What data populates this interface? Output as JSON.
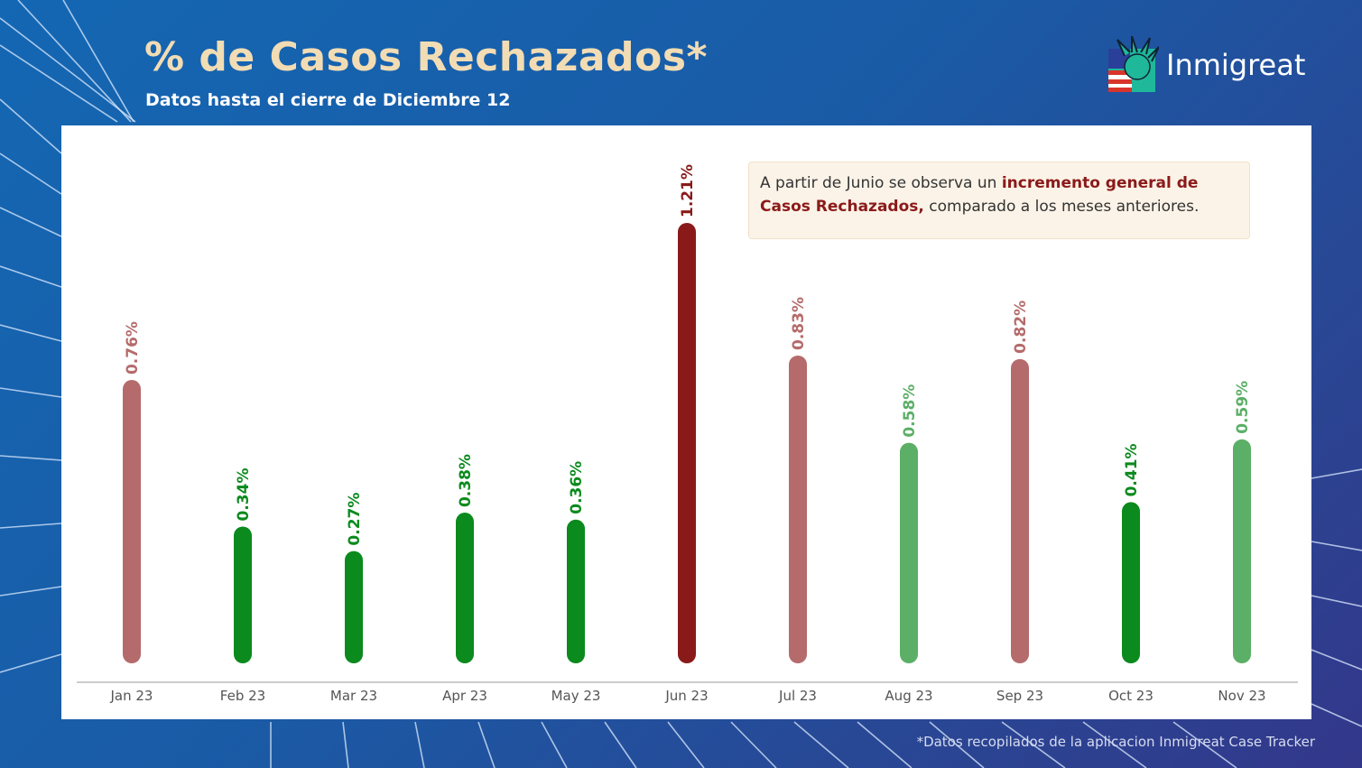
{
  "header": {
    "title": "% de Casos Rechazados*",
    "subtitle": "Datos hasta el cierre de Diciembre 12"
  },
  "logo": {
    "text": "Inmigreat"
  },
  "annotation": {
    "pre": "A partir de Junio se observa un ",
    "bold": "incremento general de Casos Rechazados,",
    "post": " comparado a los meses anteriores."
  },
  "footer": {
    "note": "*Datos recopilados de la aplicacion Inmigreat Case Tracker"
  },
  "colors": {
    "light_red": "#b56b6b",
    "dark_red": "#8a1a1a",
    "dark_green": "#0b8a1d",
    "light_green": "#5caf66"
  },
  "chart_data": {
    "type": "bar",
    "title": "% de Casos Rechazados*",
    "categories": [
      "Jan 23",
      "Feb 23",
      "Mar 23",
      "Apr 23",
      "May 23",
      "Jun 23",
      "Jul 23",
      "Aug 23",
      "Sep 23",
      "Oct 23",
      "Nov 23"
    ],
    "values": [
      0.76,
      0.34,
      0.27,
      0.38,
      0.36,
      1.21,
      0.83,
      0.58,
      0.82,
      0.41,
      0.59
    ],
    "labels": [
      "0.76%",
      "0.34%",
      "0.27%",
      "0.38%",
      "0.36%",
      "1.21%",
      "0.83%",
      "0.58%",
      "0.82%",
      "0.41%",
      "0.59%"
    ],
    "bar_colors": [
      "light_red",
      "dark_green",
      "dark_green",
      "dark_green",
      "dark_green",
      "dark_red",
      "light_red",
      "light_green",
      "light_red",
      "dark_green",
      "light_green"
    ],
    "unit": "%",
    "ylim": [
      0,
      1.21
    ],
    "grid": false,
    "legend": "none"
  }
}
